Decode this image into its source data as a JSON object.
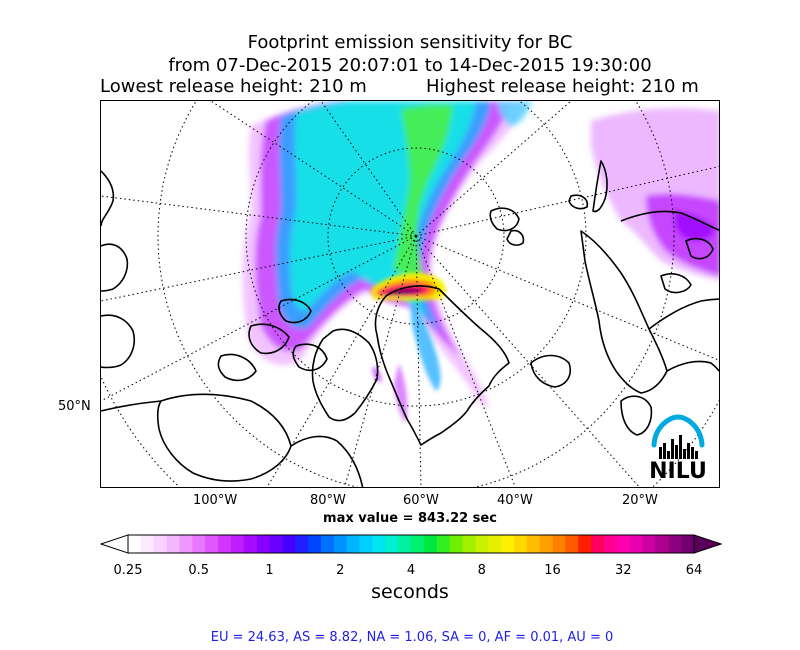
{
  "title": {
    "line1": "Footprint emission sensitivity for BC",
    "line2": "from 07-Dec-2015 20:07:01 to 14-Dec-2015 19:30:00",
    "lowest_release": "Lowest release height: 210 m",
    "highest_release": "Highest release height: 210 m"
  },
  "map": {
    "lat_labels": [
      "50°N"
    ],
    "lon_labels": [
      "100°W",
      "80°W",
      "60°W",
      "40°W",
      "20°W"
    ],
    "max_value_text": "max value = 843.22 sec",
    "logo_text": "NILU",
    "colors": {
      "coastline": "#000000",
      "gridline": "#000000",
      "logo_arc": "#00a9e0"
    }
  },
  "colorbar": {
    "ticks": [
      "0.25",
      "0.5",
      "1",
      "2",
      "4",
      "8",
      "16",
      "32",
      "64"
    ],
    "unit": "seconds",
    "colors": [
      "#ffffff",
      "#fde9ff",
      "#f9d2ff",
      "#f4b6ff",
      "#ee97ff",
      "#e878ff",
      "#df57ff",
      "#d135ff",
      "#bf1dff",
      "#a70cff",
      "#8a00ff",
      "#6a00ff",
      "#4400ff",
      "#1f1fff",
      "#0046ff",
      "#0070ff",
      "#0093ff",
      "#00b4ff",
      "#00d0ff",
      "#00e6f0",
      "#00f0d0",
      "#00f0a0",
      "#00f070",
      "#00e640",
      "#30f020",
      "#70f000",
      "#a0f000",
      "#c8f000",
      "#e6f000",
      "#fff000",
      "#ffd800",
      "#ffbc00",
      "#ffa000",
      "#ff8000",
      "#ff5a00",
      "#ff2000",
      "#ff0060",
      "#ff0090",
      "#ff00b0",
      "#e800b0",
      "#cc00a0",
      "#ad0090",
      "#8e0080",
      "#700070"
    ],
    "under_color": "#ffffff",
    "over_color": "#5a0058"
  },
  "stats_text": "EU = 24.63,  AS = 8.82,  NA = 1.06,  SA = 0,  AF = 0.01,  AU = 0"
}
